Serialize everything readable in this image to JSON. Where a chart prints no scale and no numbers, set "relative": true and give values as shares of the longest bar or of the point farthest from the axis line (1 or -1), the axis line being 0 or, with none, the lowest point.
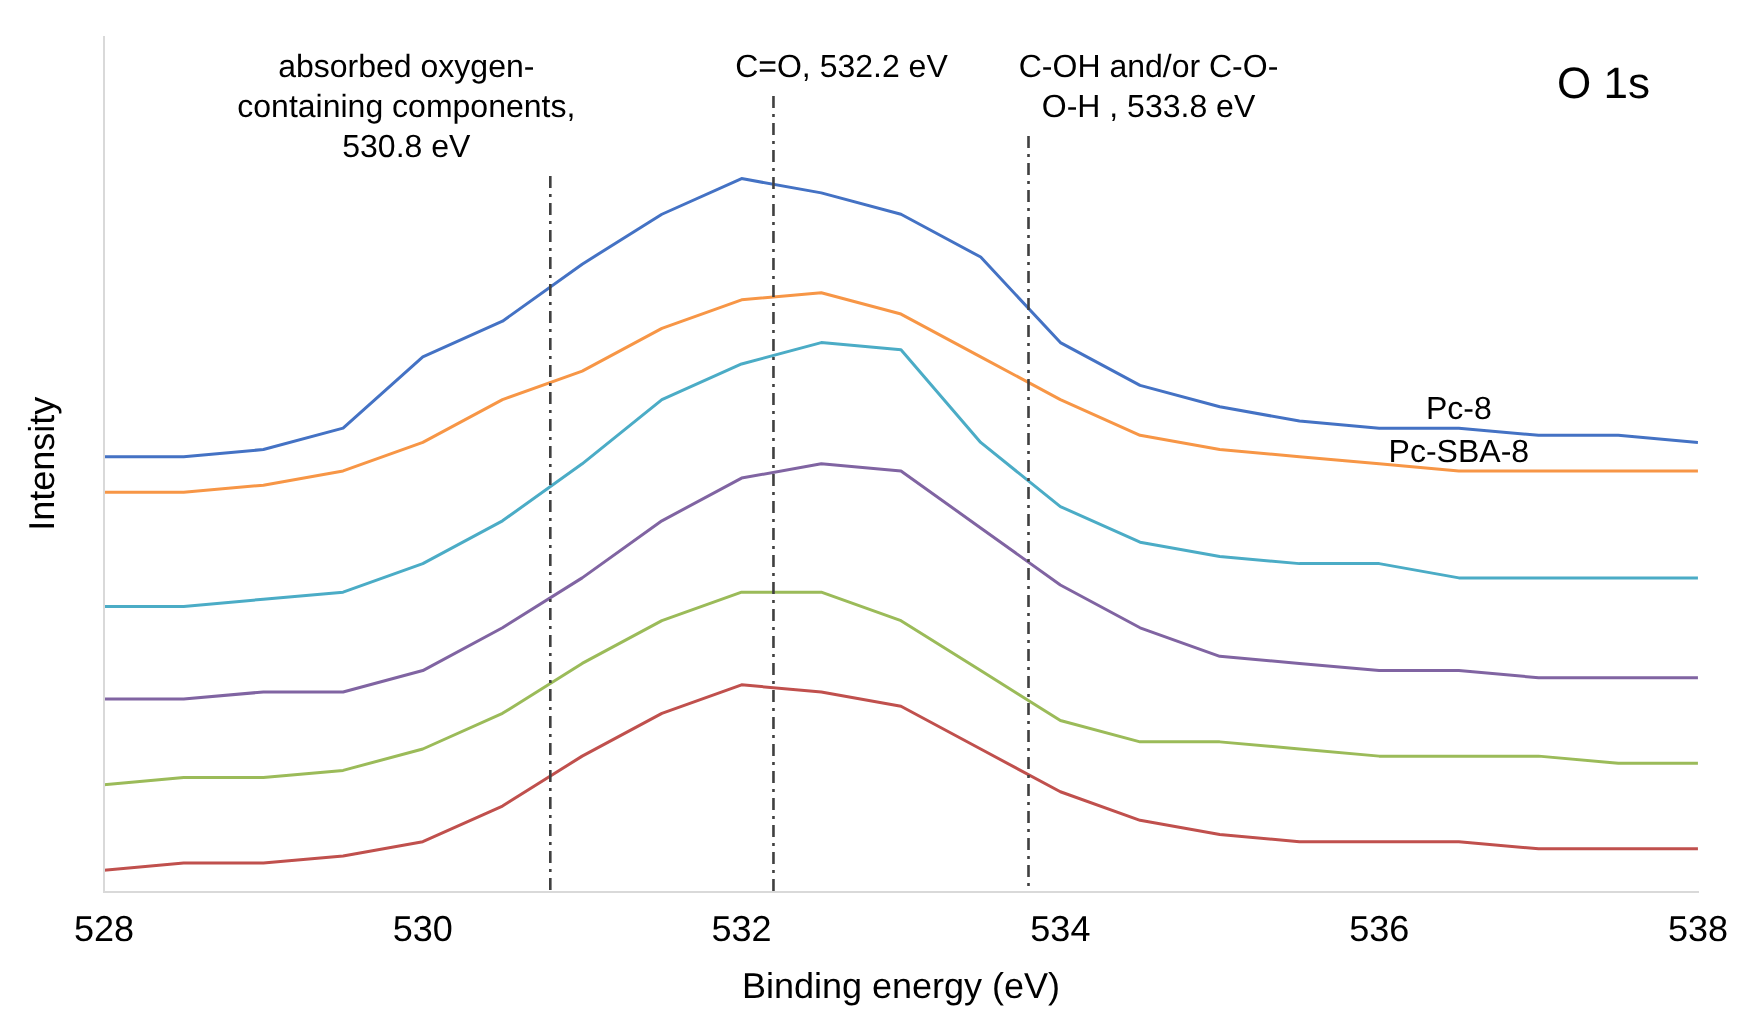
{
  "chart_data": {
    "type": "line",
    "relative": true,
    "xlabel": "Binding energy (eV)",
    "ylabel": "Intensity",
    "xlim": [
      528,
      538
    ],
    "xticks": [
      528,
      530,
      532,
      534,
      536,
      538
    ],
    "grid": false,
    "legend": false,
    "marker": "none",
    "line_style": "solid",
    "x": [
      528,
      528.5,
      529,
      529.5,
      530,
      530.5,
      531,
      531.5,
      532,
      532.5,
      533,
      533.5,
      534,
      534.5,
      535,
      535.5,
      536,
      536.5,
      537,
      537.5,
      538
    ],
    "series": [
      {
        "name": "Pc-8",
        "color": "#4472c4",
        "values": [
          0.61,
          0.61,
          0.62,
          0.65,
          0.75,
          0.8,
          0.88,
          0.95,
          1.0,
          0.98,
          0.95,
          0.89,
          0.77,
          0.71,
          0.68,
          0.66,
          0.65,
          0.65,
          0.64,
          0.64,
          0.63
        ]
      },
      {
        "name": "Pc-SBA-8",
        "color": "#f79646",
        "values": [
          0.56,
          0.56,
          0.57,
          0.59,
          0.63,
          0.69,
          0.73,
          0.79,
          0.83,
          0.84,
          0.81,
          0.75,
          0.69,
          0.64,
          0.62,
          0.61,
          0.6,
          0.59,
          0.59,
          0.59,
          0.59
        ]
      },
      {
        "color": "#4bacc6",
        "values": [
          0.4,
          0.4,
          0.41,
          0.42,
          0.46,
          0.52,
          0.6,
          0.69,
          0.74,
          0.77,
          0.76,
          0.63,
          0.54,
          0.49,
          0.47,
          0.46,
          0.46,
          0.44,
          0.44,
          0.44,
          0.44
        ]
      },
      {
        "color": "#8064a2",
        "values": [
          0.27,
          0.27,
          0.28,
          0.28,
          0.31,
          0.37,
          0.44,
          0.52,
          0.58,
          0.6,
          0.59,
          0.51,
          0.43,
          0.37,
          0.33,
          0.32,
          0.31,
          0.31,
          0.3,
          0.3,
          0.3
        ]
      },
      {
        "color": "#9bbb59",
        "values": [
          0.15,
          0.16,
          0.16,
          0.17,
          0.2,
          0.25,
          0.32,
          0.38,
          0.42,
          0.42,
          0.38,
          0.31,
          0.24,
          0.21,
          0.21,
          0.2,
          0.19,
          0.19,
          0.19,
          0.18,
          0.18
        ]
      },
      {
        "color": "#c0504d",
        "values": [
          0.03,
          0.04,
          0.04,
          0.05,
          0.07,
          0.12,
          0.19,
          0.25,
          0.29,
          0.28,
          0.26,
          0.2,
          0.14,
          0.1,
          0.08,
          0.07,
          0.07,
          0.07,
          0.06,
          0.06,
          0.06
        ]
      }
    ],
    "ref_lines": [
      {
        "axis": "x",
        "value": 530.8,
        "label": "absorbed oxygen-\ncontaining components,\n530.8 eV",
        "color": "#404040",
        "line_style": "dashdot"
      },
      {
        "axis": "x",
        "value": 532.2,
        "label": "C=O, 532.2 eV",
        "color": "#404040",
        "line_style": "dashdot"
      },
      {
        "axis": "x",
        "value": 533.8,
        "label": "C-OH and/or C-O-\nO-H , 533.8 eV",
        "color": "#404040",
        "line_style": "dashdot"
      }
    ],
    "annotations": [
      "O 1s"
    ]
  }
}
